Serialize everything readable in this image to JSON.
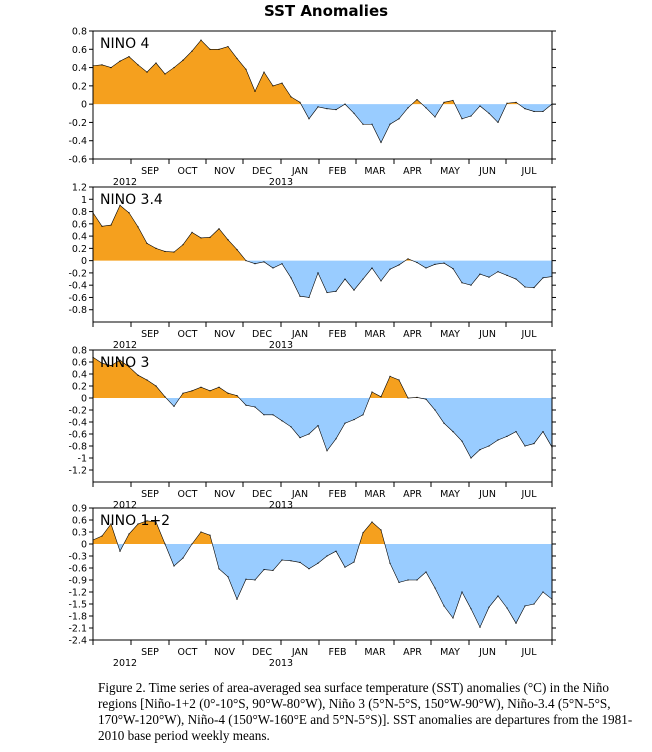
{
  "title": "SST Anomalies",
  "caption": "Figure 2. Time series of area-averaged sea surface temperature (SST) anomalies (°C) in the Niño regions [Niño-1+2 (0°-10°S, 90°W-80°W), Niño 3 (5°N-5°S, 150°W-90°W), Niño-3.4 (5°N-5°S, 170°W-120°W), Niño-4 (150°W-160°E  and 5°N-5°S)].  SST anomalies are departures from the 1981-2010 base period weekly means.",
  "colors": {
    "positive": "#F5A01E",
    "negative": "#99CCFF",
    "line": "#000000"
  },
  "chart_data": [
    {
      "type": "area",
      "title": "NINO 4",
      "x_tick_labels": [
        "SEP",
        "OCT",
        "NOV",
        "DEC",
        "JAN",
        "FEB",
        "MAR",
        "APR",
        "MAY",
        "JUN",
        "JUL"
      ],
      "year_labels": [
        "2012",
        "2013"
      ],
      "ylim": [
        -0.6,
        0.8
      ],
      "y_ticks": [
        "0.8",
        "0.6",
        "0.4",
        "0.2",
        "0",
        "-0.2",
        "-0.4",
        "-0.6"
      ],
      "grid": false,
      "x_week_start": "2012-08-01",
      "values": [
        0.42,
        0.43,
        0.4,
        0.47,
        0.52,
        0.43,
        0.35,
        0.45,
        0.33,
        0.4,
        0.48,
        0.58,
        0.7,
        0.6,
        0.6,
        0.63,
        0.5,
        0.38,
        0.14,
        0.35,
        0.2,
        0.23,
        0.08,
        0.02,
        -0.16,
        -0.03,
        -0.05,
        -0.06,
        0.0,
        -0.1,
        -0.22,
        -0.22,
        -0.42,
        -0.22,
        -0.16,
        -0.04,
        0.05,
        -0.04,
        -0.14,
        0.02,
        0.04,
        -0.16,
        -0.13,
        -0.02,
        -0.1,
        -0.2,
        0.01,
        0.02,
        -0.05,
        -0.08,
        -0.08,
        0.0
      ]
    },
    {
      "type": "area",
      "title": "NINO 3.4",
      "x_tick_labels": [
        "SEP",
        "OCT",
        "NOV",
        "DEC",
        "JAN",
        "FEB",
        "MAR",
        "APR",
        "MAY",
        "JUN",
        "JUL"
      ],
      "year_labels": [
        "2012",
        "2013"
      ],
      "ylim": [
        -1.0,
        1.2
      ],
      "y_ticks": [
        "1.2",
        "1",
        "0.8",
        "0.6",
        "0.4",
        "0.2",
        "0",
        "-0.2",
        "-0.4",
        "-0.6",
        "-0.8"
      ],
      "grid": false,
      "x_week_start": "2012-08-01",
      "values": [
        0.78,
        0.56,
        0.58,
        0.9,
        0.78,
        0.55,
        0.28,
        0.2,
        0.15,
        0.14,
        0.26,
        0.46,
        0.37,
        0.38,
        0.52,
        0.34,
        0.18,
        0.0,
        -0.05,
        -0.02,
        -0.12,
        -0.05,
        -0.28,
        -0.58,
        -0.6,
        -0.2,
        -0.52,
        -0.5,
        -0.3,
        -0.48,
        -0.3,
        -0.12,
        -0.33,
        -0.14,
        -0.07,
        0.03,
        -0.03,
        -0.12,
        -0.06,
        -0.04,
        -0.13,
        -0.36,
        -0.4,
        -0.22,
        -0.27,
        -0.18,
        -0.24,
        -0.3,
        -0.43,
        -0.44,
        -0.28,
        -0.26
      ]
    },
    {
      "type": "area",
      "title": "NINO 3",
      "x_tick_labels": [
        "SEP",
        "OCT",
        "NOV",
        "DEC",
        "JAN",
        "FEB",
        "MAR",
        "APR",
        "MAY",
        "JUN",
        "JUL"
      ],
      "year_labels": [
        "2012",
        "2013"
      ],
      "ylim": [
        -1.4,
        0.8
      ],
      "y_ticks": [
        "0.8",
        "0.6",
        "0.4",
        "0.2",
        "0",
        "-0.2",
        "-0.4",
        "-0.6",
        "-0.8",
        "-1",
        "-1.2"
      ],
      "grid": false,
      "x_week_start": "2012-08-01",
      "values": [
        0.68,
        0.58,
        0.54,
        0.63,
        0.52,
        0.38,
        0.3,
        0.2,
        0.02,
        -0.14,
        0.08,
        0.12,
        0.18,
        0.12,
        0.18,
        0.08,
        0.04,
        -0.12,
        -0.15,
        -0.28,
        -0.28,
        -0.38,
        -0.48,
        -0.66,
        -0.6,
        -0.46,
        -0.88,
        -0.68,
        -0.42,
        -0.36,
        -0.28,
        0.1,
        0.02,
        0.36,
        0.3,
        0.0,
        0.01,
        -0.02,
        -0.2,
        -0.42,
        -0.56,
        -0.72,
        -1.0,
        -0.86,
        -0.8,
        -0.7,
        -0.64,
        -0.56,
        -0.8,
        -0.76,
        -0.56,
        -0.82
      ]
    },
    {
      "type": "area",
      "title": "NINO 1+2",
      "x_tick_labels": [
        "SEP",
        "OCT",
        "NOV",
        "DEC",
        "JAN",
        "FEB",
        "MAR",
        "APR",
        "MAY",
        "JUN",
        "JUL"
      ],
      "year_labels": [
        "2012",
        "2013"
      ],
      "ylim": [
        -2.4,
        0.9
      ],
      "y_ticks": [
        "0.9",
        "0.6",
        "0.3",
        "0",
        "-0.3",
        "-0.6",
        "-0.9",
        "-1.2",
        "-1.5",
        "-1.8",
        "-2.1",
        "-2.4"
      ],
      "grid": false,
      "x_week_start": "2012-08-01",
      "values": [
        0.1,
        0.2,
        0.5,
        -0.18,
        0.25,
        0.5,
        0.58,
        0.55,
        0.0,
        -0.55,
        -0.35,
        0.0,
        0.3,
        0.22,
        -0.62,
        -0.82,
        -1.38,
        -0.88,
        -0.9,
        -0.64,
        -0.66,
        -0.4,
        -0.42,
        -0.46,
        -0.62,
        -0.48,
        -0.3,
        -0.18,
        -0.58,
        -0.45,
        0.28,
        0.55,
        0.35,
        -0.48,
        -0.96,
        -0.9,
        -0.9,
        -0.7,
        -1.1,
        -1.55,
        -1.85,
        -1.2,
        -1.62,
        -2.08,
        -1.58,
        -1.3,
        -1.6,
        -1.98,
        -1.55,
        -1.5,
        -1.2,
        -1.38
      ]
    }
  ]
}
